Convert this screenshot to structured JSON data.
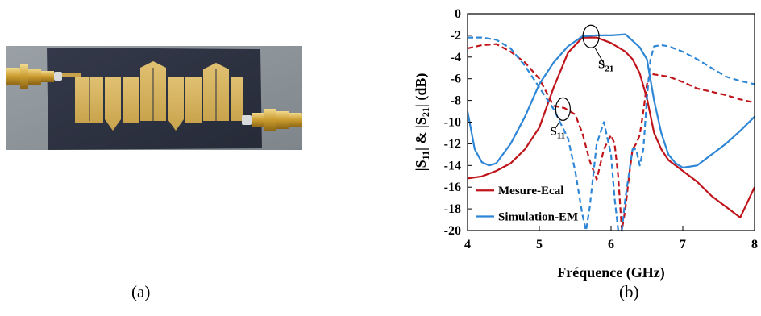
{
  "captions": {
    "left": "(a)",
    "right": "(b)"
  },
  "photo": {
    "subject": "microstrip-filter-prototype-with-two-sma-connectors",
    "substrate_color": "#2b3140",
    "trace_color": "#d9b75e",
    "background_color": "#8c949a"
  },
  "chart_data": {
    "type": "line",
    "xlabel": "Fréquence (GHz)",
    "ylabel_parts": [
      "|S",
      "11",
      "| & |S",
      "21",
      "| (dB)"
    ],
    "xlim": [
      4,
      8
    ],
    "ylim": [
      -20,
      0
    ],
    "xticks": [
      4,
      5,
      6,
      7,
      8
    ],
    "yticks": [
      0,
      -2,
      -4,
      -6,
      -8,
      -10,
      -12,
      -14,
      -16,
      -18,
      -20
    ],
    "grid": false,
    "legend_position": "bottom-left",
    "legend": [
      {
        "label": "Mesure-Ecal",
        "color": "#c0141b"
      },
      {
        "label": "Simulation-EM",
        "color": "#2e86d6"
      }
    ],
    "annotations": [
      {
        "text_main": "S",
        "text_sub": "21"
      },
      {
        "text_main": "S",
        "text_sub": "11"
      }
    ],
    "series": [
      {
        "name": "Mesure-Ecal",
        "param": "S21",
        "style": "solid",
        "color": "#c0141b",
        "x": [
          4.0,
          4.2,
          4.4,
          4.6,
          4.8,
          5.0,
          5.2,
          5.4,
          5.6,
          5.8,
          6.0,
          6.2,
          6.3,
          6.4,
          6.5,
          6.6,
          6.7,
          6.8,
          7.0,
          7.2,
          7.4,
          7.6,
          7.8,
          8.0
        ],
        "y": [
          -15.2,
          -15.0,
          -14.5,
          -13.8,
          -12.5,
          -10.5,
          -6.8,
          -3.6,
          -2.2,
          -2.2,
          -2.7,
          -3.5,
          -4.2,
          -5.5,
          -7.8,
          -11.0,
          -12.5,
          -13.5,
          -14.5,
          -15.5,
          -16.8,
          -17.8,
          -18.8,
          -16.0
        ]
      },
      {
        "name": "Mesure-Ecal",
        "param": "S11",
        "style": "dashed",
        "color": "#c0141b",
        "x": [
          4.0,
          4.2,
          4.4,
          4.6,
          4.8,
          5.0,
          5.2,
          5.35,
          5.5,
          5.6,
          5.7,
          5.8,
          5.9,
          6.0,
          6.05,
          6.1,
          6.15,
          6.2,
          6.25,
          6.3,
          6.35,
          6.4,
          6.45,
          6.5,
          6.55,
          6.6,
          6.8,
          7.0,
          7.2,
          7.4,
          7.6,
          7.8,
          8.0
        ],
        "y": [
          -3.2,
          -2.9,
          -2.8,
          -3.5,
          -4.5,
          -6.0,
          -8.5,
          -8.7,
          -9.3,
          -11.0,
          -13.5,
          -15.3,
          -12.5,
          -11.2,
          -12.0,
          -15.0,
          -20.0,
          -18.0,
          -15.0,
          -12.5,
          -12.0,
          -11.2,
          -9.0,
          -6.5,
          -5.5,
          -5.6,
          -5.8,
          -6.3,
          -6.9,
          -7.2,
          -7.5,
          -7.9,
          -8.2
        ]
      },
      {
        "name": "Simulation-EM",
        "param": "S21",
        "style": "solid",
        "color": "#2e86d6",
        "x": [
          4.0,
          4.1,
          4.2,
          4.3,
          4.4,
          4.6,
          4.8,
          5.0,
          5.2,
          5.4,
          5.6,
          5.8,
          6.0,
          6.2,
          6.3,
          6.4,
          6.5,
          6.6,
          6.7,
          6.8,
          6.9,
          7.0,
          7.2,
          7.4,
          7.6,
          7.8,
          8.0
        ],
        "y": [
          -9.0,
          -12.5,
          -13.7,
          -14.0,
          -13.8,
          -12.0,
          -9.5,
          -6.5,
          -4.5,
          -3.0,
          -2.1,
          -2.0,
          -2.0,
          -1.9,
          -2.5,
          -3.1,
          -4.2,
          -8.0,
          -11.0,
          -13.0,
          -13.8,
          -14.2,
          -14.0,
          -13.0,
          -12.0,
          -10.8,
          -9.5
        ]
      },
      {
        "name": "Simulation-EM",
        "param": "S11",
        "style": "dashed",
        "color": "#2e86d6",
        "x": [
          4.0,
          4.2,
          4.4,
          4.6,
          4.8,
          5.0,
          5.2,
          5.4,
          5.5,
          5.6,
          5.65,
          5.7,
          5.8,
          5.9,
          6.0,
          6.05,
          6.1,
          6.15,
          6.2,
          6.3,
          6.35,
          6.4,
          6.45,
          6.5,
          6.55,
          6.6,
          6.7,
          6.8,
          7.0,
          7.2,
          7.4,
          7.6,
          7.8,
          8.0
        ],
        "y": [
          -2.2,
          -2.2,
          -2.4,
          -3.2,
          -4.8,
          -6.8,
          -8.8,
          -11.5,
          -14.5,
          -18.5,
          -20.0,
          -18.0,
          -12.0,
          -10.0,
          -13.0,
          -17.0,
          -20.0,
          -20.0,
          -17.0,
          -12.5,
          -12.5,
          -14.0,
          -12.5,
          -7.8,
          -4.2,
          -3.0,
          -2.9,
          -3.0,
          -3.5,
          -4.2,
          -5.0,
          -5.8,
          -6.2,
          -6.5
        ]
      }
    ]
  }
}
